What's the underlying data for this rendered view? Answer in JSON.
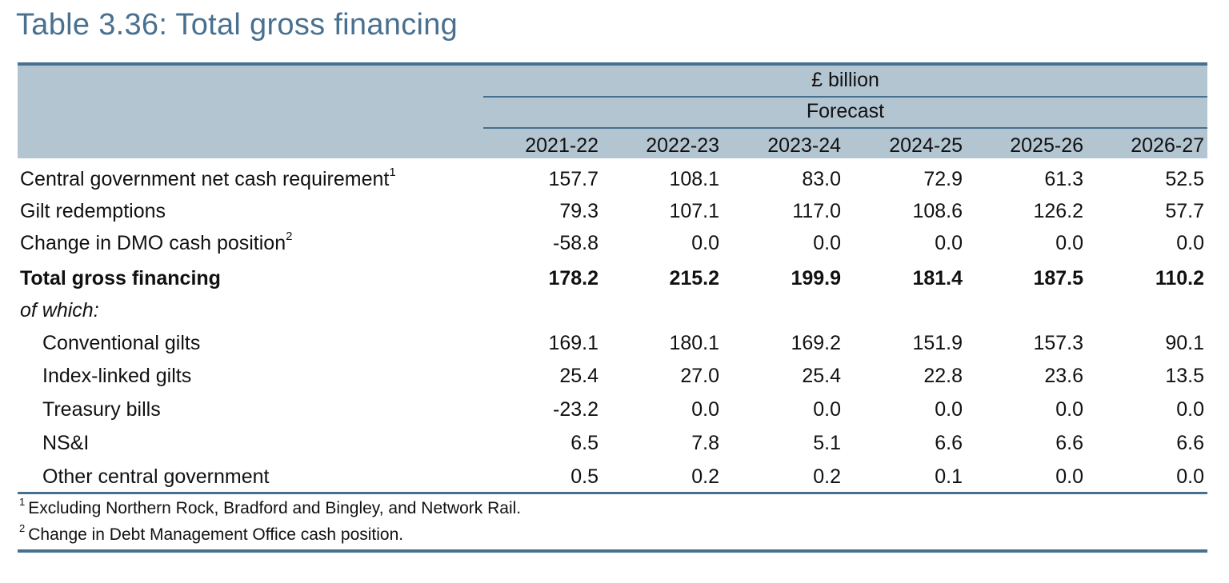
{
  "title": "Table 3.36: Total gross financing",
  "header": {
    "unit": "£ billion",
    "group": "Forecast",
    "years": [
      "2021-22",
      "2022-23",
      "2023-24",
      "2024-25",
      "2025-26",
      "2026-27"
    ]
  },
  "rows": [
    {
      "label": "Central government net cash requirement",
      "note": "1",
      "values": [
        "157.7",
        "108.1",
        "83.0",
        "72.9",
        "61.3",
        "52.5"
      ]
    },
    {
      "label": "Gilt redemptions",
      "values": [
        "79.3",
        "107.1",
        "117.0",
        "108.6",
        "126.2",
        "57.7"
      ]
    },
    {
      "label": "Change in DMO cash position",
      "note": "2",
      "values": [
        "-58.8",
        "0.0",
        "0.0",
        "0.0",
        "0.0",
        "0.0"
      ]
    },
    {
      "label": "Total gross financing",
      "values": [
        "178.2",
        "215.2",
        "199.9",
        "181.4",
        "187.5",
        "110.2"
      ]
    },
    {
      "label": "of which:"
    },
    {
      "label": "Conventional gilts",
      "values": [
        "169.1",
        "180.1",
        "169.2",
        "151.9",
        "157.3",
        "90.1"
      ]
    },
    {
      "label": "Index-linked gilts",
      "values": [
        "25.4",
        "27.0",
        "25.4",
        "22.8",
        "23.6",
        "13.5"
      ]
    },
    {
      "label": "Treasury bills",
      "values": [
        "-23.2",
        "0.0",
        "0.0",
        "0.0",
        "0.0",
        "0.0"
      ]
    },
    {
      "label": "NS&I",
      "values": [
        "6.5",
        "7.8",
        "5.1",
        "6.6",
        "6.6",
        "6.6"
      ]
    },
    {
      "label": "Other central government",
      "values": [
        "0.5",
        "0.2",
        "0.2",
        "0.1",
        "0.0",
        "0.0"
      ]
    }
  ],
  "footnotes": [
    {
      "mark": "1",
      "text": "Excluding Northern Rock, Bradford and Bingley, and Network Rail."
    },
    {
      "mark": "2",
      "text": "Change in Debt Management Office cash position."
    }
  ],
  "colors": {
    "accent": "#47708f",
    "header_bg": "#b4c5d2",
    "title": "#4a7090"
  }
}
